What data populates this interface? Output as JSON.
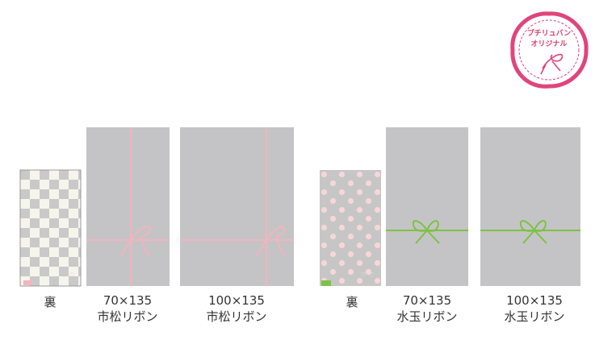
{
  "badge": {
    "lines": [
      "プチリュバン",
      "オリジナル"
    ]
  },
  "items": [
    {
      "label": "裏"
    },
    {
      "size": "70×135",
      "name": "市松リボン"
    },
    {
      "size": "100×135",
      "name": "市松リボン"
    },
    {
      "label": "裏"
    },
    {
      "size": "70×135",
      "name": "水玉リボン"
    },
    {
      "size": "100×135",
      "name": "水玉リボン"
    }
  ]
}
